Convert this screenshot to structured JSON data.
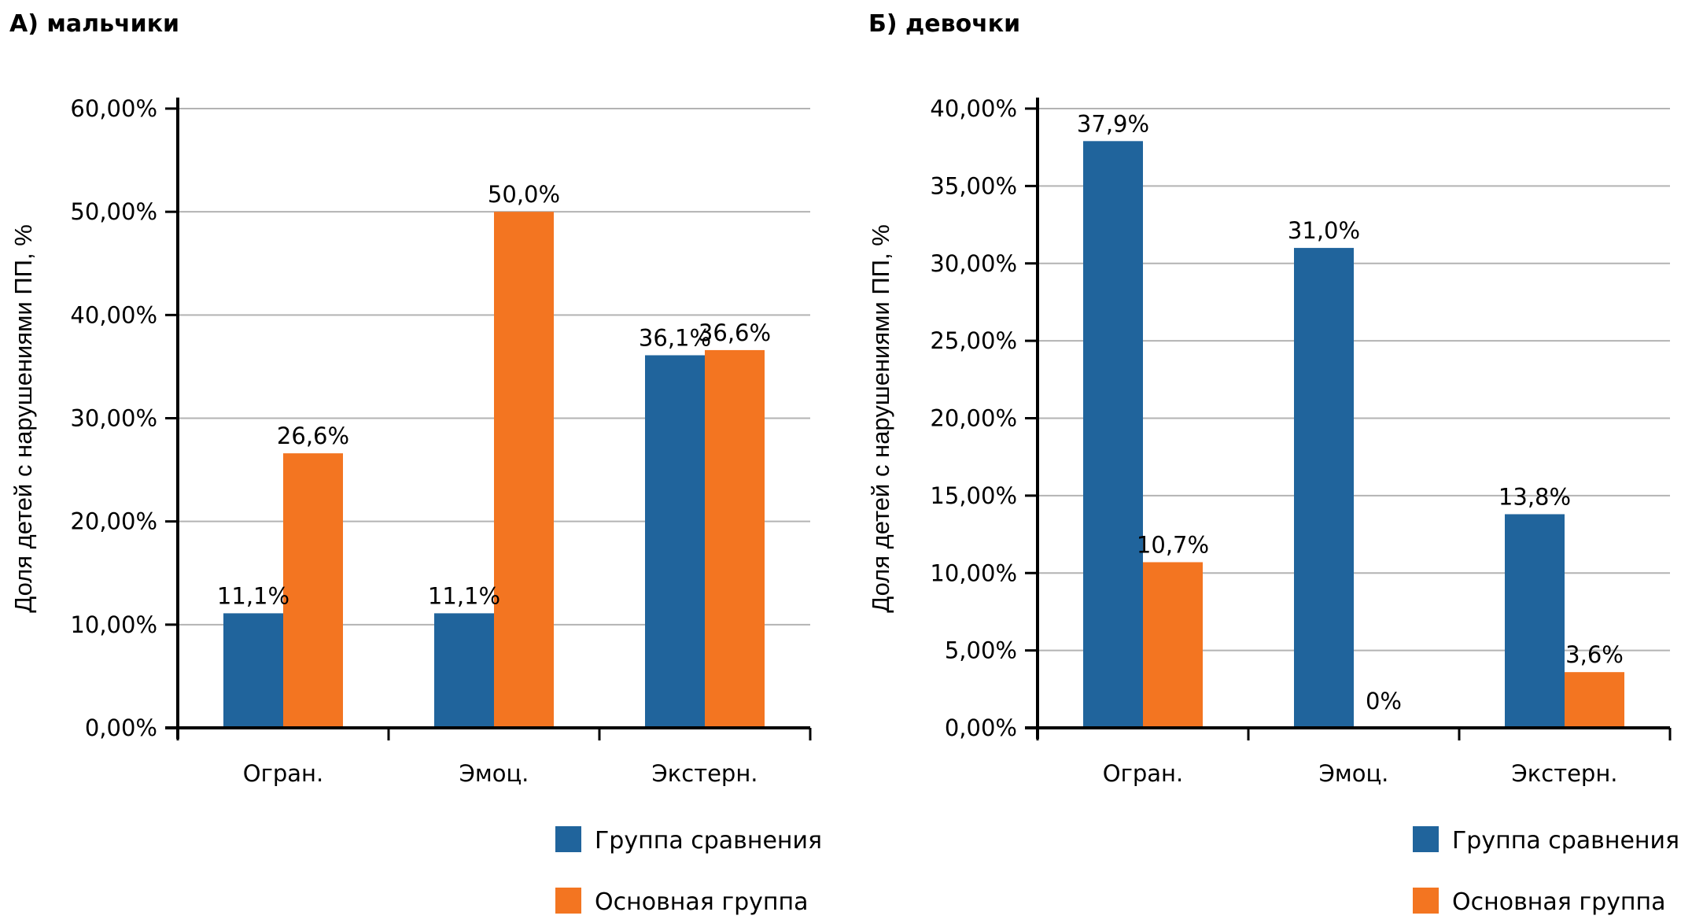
{
  "chart_data": [
    {
      "type": "bar",
      "title": "А) мальчики",
      "xlabel": "",
      "ylabel": "Доля детей с нарушениями ПП, %",
      "ylim": [
        0,
        60
      ],
      "ytick_step": 10,
      "yticks": [
        "0,00%",
        "10,00%",
        "20,00%",
        "30,00%",
        "40,00%",
        "50,00%",
        "60,00%"
      ],
      "grid": true,
      "categories": [
        "Огран.",
        "Эмоц.",
        "Экстерн."
      ],
      "series": [
        {
          "name": "Группа сравнения",
          "color": "#20649c",
          "values": [
            11.1,
            11.1,
            36.1
          ],
          "labels": [
            "11,1%",
            "11,1%",
            "36,1%"
          ]
        },
        {
          "name": "Основная группа",
          "color": "#f37521",
          "values": [
            26.6,
            50.0,
            36.6
          ],
          "labels": [
            "26,6%",
            "50,0%",
            "36,6%"
          ]
        }
      ],
      "legend": {
        "placement": "bottom-right",
        "entries": [
          "Группа сравнения",
          "Основная группа"
        ]
      }
    },
    {
      "type": "bar",
      "title": "Б) девочки",
      "xlabel": "",
      "ylabel": "Доля детей с нарушениями ПП, %",
      "ylim": [
        0,
        40
      ],
      "ytick_step": 5,
      "yticks": [
        "0,00%",
        "5,00%",
        "10,00%",
        "15,00%",
        "20,00%",
        "25,00%",
        "30,00%",
        "35,00%",
        "40,00%"
      ],
      "grid": true,
      "categories": [
        "Огран.",
        "Эмоц.",
        "Экстерн."
      ],
      "series": [
        {
          "name": "Группа сравнения",
          "color": "#20649c",
          "values": [
            37.9,
            31.0,
            13.8
          ],
          "labels": [
            "37,9%",
            "31,0%",
            "13,8%"
          ]
        },
        {
          "name": "Основная группа",
          "color": "#f37521",
          "values": [
            10.7,
            0,
            3.6
          ],
          "labels": [
            "10,7%",
            "0%",
            "3,6%"
          ]
        }
      ],
      "legend": {
        "placement": "bottom-right",
        "entries": [
          "Группа сравнения",
          "Основная группа"
        ]
      }
    }
  ]
}
